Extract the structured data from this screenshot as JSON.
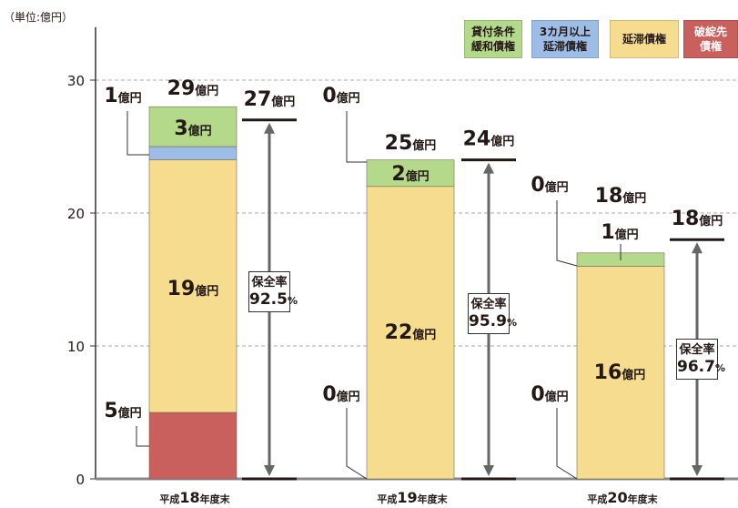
{
  "unit_label": "（単位:億円）",
  "legend": [
    {
      "label": "貸付条件\n緩和債権",
      "color": "#b5d98a"
    },
    {
      "label": "3カ月以上\n延滞債権",
      "color": "#9dbde6"
    },
    {
      "label": "延滞債権",
      "color": "#f6dc8f"
    },
    {
      "label": "破綻先\n債権",
      "color": "#c9605d"
    }
  ],
  "chart_data": {
    "type": "bar",
    "stacked": true,
    "ylim": [
      0,
      30
    ],
    "yticks": [
      "0",
      "10",
      "20",
      "30"
    ],
    "grid": true,
    "legend_position": "top-right",
    "categories": [
      "平成18年度末",
      "平成19年度末",
      "平成20年度末"
    ],
    "category_parts": [
      {
        "prefix": "平成",
        "num": "18",
        "suffix": "年度末"
      },
      {
        "prefix": "平成",
        "num": "19",
        "suffix": "年度末"
      },
      {
        "prefix": "平成",
        "num": "20",
        "suffix": "年度末"
      }
    ],
    "unit": "億円",
    "series": [
      {
        "name": "破綻先債権",
        "color": "#c9605d",
        "values": [
          5,
          0,
          0
        ]
      },
      {
        "name": "延滞債権",
        "color": "#f6dc8f",
        "values": [
          19,
          22,
          16
        ]
      },
      {
        "name": "3カ月以上延滞債権",
        "color": "#9dbde6",
        "values": [
          1,
          0,
          0
        ]
      },
      {
        "name": "貸付条件緩和債権",
        "color": "#b5d98a",
        "values": [
          3,
          2,
          1
        ]
      }
    ],
    "totals": [
      29,
      25,
      18
    ],
    "secured": [
      27,
      24,
      18
    ],
    "secured_rate_label": "保全率",
    "secured_rate": [
      "92.5",
      "95.9",
      "96.7"
    ],
    "percent_sign": "%"
  }
}
